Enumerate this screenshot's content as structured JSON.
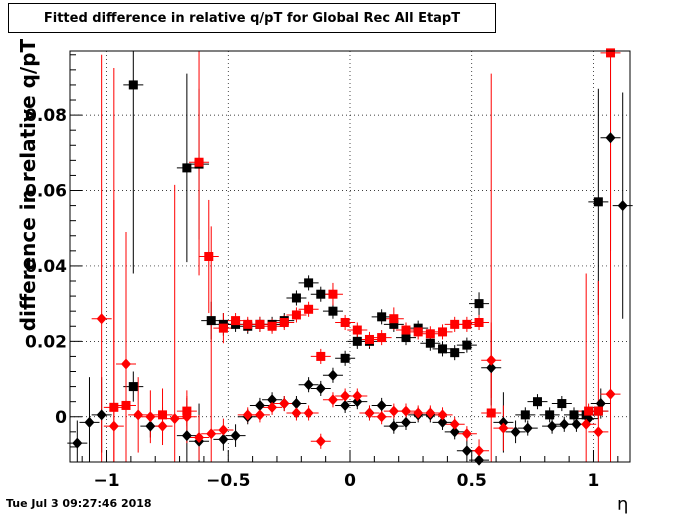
{
  "title": "Fitted difference in relative q/pT for Global Rec All EtapT",
  "timestamp": "Tue Jul  3 09:27:46 2018",
  "chart_data": {
    "type": "scatter",
    "title": "Fitted difference in relative q/pT for Global Rec All EtapT",
    "xlabel": "η",
    "ylabel": "difference in relative q/pT",
    "xlim": [
      -1.15,
      1.15
    ],
    "ylim": [
      -0.012,
      0.097
    ],
    "grid": true,
    "legend": "none",
    "x_ticks": [
      -1,
      -0.5,
      0,
      0.5,
      1
    ],
    "x_tick_labels": [
      "−1",
      "−0.5",
      "0",
      "0.5",
      "1"
    ],
    "y_ticks": [
      0,
      0.02,
      0.04,
      0.06,
      0.08
    ],
    "y_tick_labels": [
      "0",
      "0.02",
      "0.04",
      "0.06",
      "0.08"
    ],
    "series": [
      {
        "color": "#000000",
        "marker": "square",
        "points": [
          {
            "x": -0.89,
            "y": 0.088,
            "err": 0.05
          },
          {
            "x": -0.89,
            "y": 0.008,
            "err": 0.004
          },
          {
            "x": -0.67,
            "y": 0.066,
            "err": 0.025
          },
          {
            "x": -0.62,
            "y": 0.067,
            "err": 0.02
          },
          {
            "x": -0.57,
            "y": 0.0255,
            "err": 0.005
          },
          {
            "x": -0.52,
            "y": 0.0245,
            "err": 0.003
          },
          {
            "x": -0.47,
            "y": 0.0245,
            "err": 0.002
          },
          {
            "x": -0.42,
            "y": 0.024,
            "err": 0.002
          },
          {
            "x": -0.37,
            "y": 0.0245,
            "err": 0.002
          },
          {
            "x": -0.32,
            "y": 0.0245,
            "err": 0.002
          },
          {
            "x": -0.27,
            "y": 0.0255,
            "err": 0.002
          },
          {
            "x": -0.22,
            "y": 0.0315,
            "err": 0.002
          },
          {
            "x": -0.17,
            "y": 0.0355,
            "err": 0.002
          },
          {
            "x": -0.12,
            "y": 0.0325,
            "err": 0.002
          },
          {
            "x": -0.07,
            "y": 0.028,
            "err": 0.002
          },
          {
            "x": -0.02,
            "y": 0.0155,
            "err": 0.002
          },
          {
            "x": 0.03,
            "y": 0.02,
            "err": 0.002
          },
          {
            "x": 0.08,
            "y": 0.02,
            "err": 0.002
          },
          {
            "x": 0.13,
            "y": 0.0265,
            "err": 0.002
          },
          {
            "x": 0.18,
            "y": 0.0245,
            "err": 0.002
          },
          {
            "x": 0.23,
            "y": 0.021,
            "err": 0.002
          },
          {
            "x": 0.28,
            "y": 0.0235,
            "err": 0.002
          },
          {
            "x": 0.33,
            "y": 0.0195,
            "err": 0.002
          },
          {
            "x": 0.38,
            "y": 0.018,
            "err": 0.002
          },
          {
            "x": 0.43,
            "y": 0.017,
            "err": 0.002
          },
          {
            "x": 0.48,
            "y": 0.019,
            "err": 0.002
          },
          {
            "x": 0.53,
            "y": 0.03,
            "err": 0.003
          },
          {
            "x": 0.72,
            "y": 0.0005,
            "err": 0.002
          },
          {
            "x": 0.77,
            "y": 0.004,
            "err": 0.002
          },
          {
            "x": 0.82,
            "y": 0.0005,
            "err": 0.002
          },
          {
            "x": 0.87,
            "y": 0.0035,
            "err": 0.002
          },
          {
            "x": 0.92,
            "y": 0.0005,
            "err": 0.002
          },
          {
            "x": 0.97,
            "y": 0.0005,
            "err": 0.002
          },
          {
            "x": 1.02,
            "y": 0.0015,
            "err": 0.002
          },
          {
            "x": 1.02,
            "y": 0.057,
            "err": 0.03
          }
        ]
      },
      {
        "color": "#000000",
        "marker": "diamond",
        "points": [
          {
            "x": -1.12,
            "y": -0.007,
            "err": 0.006
          },
          {
            "x": -1.07,
            "y": -0.0015,
            "err": 0.012
          },
          {
            "x": -1.02,
            "y": 0.0005,
            "err": 0.01
          },
          {
            "x": -0.82,
            "y": -0.0025,
            "err": 0.003
          },
          {
            "x": -0.67,
            "y": -0.005,
            "err": 0.01
          },
          {
            "x": -0.62,
            "y": -0.0065,
            "err": 0.01
          },
          {
            "x": -0.52,
            "y": -0.006,
            "err": 0.003
          },
          {
            "x": -0.47,
            "y": -0.005,
            "err": 0.003
          },
          {
            "x": -0.42,
            "y": 0.0,
            "err": 0.002
          },
          {
            "x": -0.37,
            "y": 0.003,
            "err": 0.002
          },
          {
            "x": -0.32,
            "y": 0.0045,
            "err": 0.002
          },
          {
            "x": -0.27,
            "y": 0.0035,
            "err": 0.002
          },
          {
            "x": -0.22,
            "y": 0.0035,
            "err": 0.002
          },
          {
            "x": -0.17,
            "y": 0.0085,
            "err": 0.002
          },
          {
            "x": -0.12,
            "y": 0.0075,
            "err": 0.002
          },
          {
            "x": -0.07,
            "y": 0.011,
            "err": 0.002
          },
          {
            "x": -0.02,
            "y": 0.003,
            "err": 0.002
          },
          {
            "x": 0.03,
            "y": 0.004,
            "err": 0.002
          },
          {
            "x": 0.08,
            "y": 0.001,
            "err": 0.002
          },
          {
            "x": 0.13,
            "y": 0.003,
            "err": 0.002
          },
          {
            "x": 0.18,
            "y": -0.0025,
            "err": 0.002
          },
          {
            "x": 0.23,
            "y": -0.0015,
            "err": 0.002
          },
          {
            "x": 0.28,
            "y": 0.0005,
            "err": 0.002
          },
          {
            "x": 0.33,
            "y": 0.0005,
            "err": 0.002
          },
          {
            "x": 0.38,
            "y": -0.0015,
            "err": 0.002
          },
          {
            "x": 0.43,
            "y": -0.004,
            "err": 0.002
          },
          {
            "x": 0.48,
            "y": -0.009,
            "err": 0.003
          },
          {
            "x": 0.53,
            "y": -0.0115,
            "err": 0.003
          },
          {
            "x": 0.58,
            "y": 0.013,
            "err": 0.01
          },
          {
            "x": 0.63,
            "y": -0.0015,
            "err": 0.008
          },
          {
            "x": 0.68,
            "y": -0.004,
            "err": 0.003
          },
          {
            "x": 0.73,
            "y": -0.003,
            "err": 0.002
          },
          {
            "x": 0.83,
            "y": -0.0025,
            "err": 0.002
          },
          {
            "x": 0.88,
            "y": -0.002,
            "err": 0.002
          },
          {
            "x": 0.93,
            "y": -0.002,
            "err": 0.002
          },
          {
            "x": 0.98,
            "y": -0.0005,
            "err": 0.002
          },
          {
            "x": 1.03,
            "y": 0.0035,
            "err": 0.004
          },
          {
            "x": 1.07,
            "y": 0.074,
            "err": 0.03
          },
          {
            "x": 1.12,
            "y": 0.056,
            "err": 0.03
          }
        ]
      },
      {
        "color": "#ff0000",
        "marker": "square",
        "points": [
          {
            "x": -0.97,
            "y": 0.0025,
            "err": 0.09
          },
          {
            "x": -0.92,
            "y": 0.003,
            "err": 0.015
          },
          {
            "x": -0.77,
            "y": 0.0005,
            "err": 0.007
          },
          {
            "x": -0.67,
            "y": 0.0015,
            "err": 0.004
          },
          {
            "x": -0.62,
            "y": 0.0675,
            "err": 0.03
          },
          {
            "x": -0.58,
            "y": 0.0425,
            "err": 0.015
          },
          {
            "x": -0.52,
            "y": 0.0235,
            "err": 0.004
          },
          {
            "x": -0.47,
            "y": 0.0255,
            "err": 0.002
          },
          {
            "x": -0.42,
            "y": 0.0245,
            "err": 0.002
          },
          {
            "x": -0.37,
            "y": 0.0245,
            "err": 0.002
          },
          {
            "x": -0.32,
            "y": 0.024,
            "err": 0.002
          },
          {
            "x": -0.27,
            "y": 0.025,
            "err": 0.002
          },
          {
            "x": -0.22,
            "y": 0.027,
            "err": 0.002
          },
          {
            "x": -0.17,
            "y": 0.0285,
            "err": 0.002
          },
          {
            "x": -0.12,
            "y": 0.016,
            "err": 0.002
          },
          {
            "x": -0.07,
            "y": 0.0325,
            "err": 0.003
          },
          {
            "x": -0.02,
            "y": 0.025,
            "err": 0.002
          },
          {
            "x": 0.03,
            "y": 0.023,
            "err": 0.002
          },
          {
            "x": 0.08,
            "y": 0.0205,
            "err": 0.002
          },
          {
            "x": 0.13,
            "y": 0.021,
            "err": 0.002
          },
          {
            "x": 0.18,
            "y": 0.026,
            "err": 0.003
          },
          {
            "x": 0.23,
            "y": 0.023,
            "err": 0.002
          },
          {
            "x": 0.28,
            "y": 0.0225,
            "err": 0.002
          },
          {
            "x": 0.33,
            "y": 0.022,
            "err": 0.002
          },
          {
            "x": 0.38,
            "y": 0.0225,
            "err": 0.002
          },
          {
            "x": 0.43,
            "y": 0.0245,
            "err": 0.002
          },
          {
            "x": 0.48,
            "y": 0.0245,
            "err": 0.002
          },
          {
            "x": 0.53,
            "y": 0.025,
            "err": 0.002
          },
          {
            "x": 0.58,
            "y": 0.001,
            "err": 0.09
          },
          {
            "x": 0.98,
            "y": 0.0015,
            "err": 0.002
          },
          {
            "x": 1.02,
            "y": 0.0015,
            "err": 0.002
          },
          {
            "x": 1.07,
            "y": 0.0965,
            "err": 0.05
          }
        ]
      },
      {
        "color": "#ff0000",
        "marker": "diamond",
        "points": [
          {
            "x": -1.02,
            "y": 0.026,
            "err": 0.07
          },
          {
            "x": -0.97,
            "y": -0.0025,
            "err": 0.06
          },
          {
            "x": -0.92,
            "y": 0.014,
            "err": 0.035
          },
          {
            "x": -0.87,
            "y": 0.0005,
            "err": 0.01
          },
          {
            "x": -0.82,
            "y": 0.0,
            "err": 0.007
          },
          {
            "x": -0.77,
            "y": -0.0025,
            "err": 0.005
          },
          {
            "x": -0.72,
            "y": -0.0005,
            "err": 0.062
          },
          {
            "x": -0.67,
            "y": 0.0,
            "err": 0.007
          },
          {
            "x": -0.62,
            "y": -0.0055,
            "err": 0.006
          },
          {
            "x": -0.57,
            "y": -0.0045,
            "err": 0.055
          },
          {
            "x": -0.52,
            "y": -0.0035,
            "err": 0.003
          },
          {
            "x": -0.42,
            "y": 0.0005,
            "err": 0.002
          },
          {
            "x": -0.37,
            "y": 0.0005,
            "err": 0.002
          },
          {
            "x": -0.32,
            "y": 0.0025,
            "err": 0.002
          },
          {
            "x": -0.27,
            "y": 0.0035,
            "err": 0.002
          },
          {
            "x": -0.22,
            "y": 0.001,
            "err": 0.002
          },
          {
            "x": -0.17,
            "y": 0.001,
            "err": 0.002
          },
          {
            "x": -0.12,
            "y": -0.0065,
            "err": 0.002
          },
          {
            "x": -0.07,
            "y": 0.0045,
            "err": 0.002
          },
          {
            "x": -0.02,
            "y": 0.0055,
            "err": 0.002
          },
          {
            "x": 0.03,
            "y": 0.0055,
            "err": 0.002
          },
          {
            "x": 0.08,
            "y": 0.001,
            "err": 0.002
          },
          {
            "x": 0.13,
            "y": 0.0,
            "err": 0.002
          },
          {
            "x": 0.18,
            "y": 0.0015,
            "err": 0.002
          },
          {
            "x": 0.23,
            "y": 0.0015,
            "err": 0.002
          },
          {
            "x": 0.28,
            "y": 0.001,
            "err": 0.002
          },
          {
            "x": 0.33,
            "y": 0.001,
            "err": 0.002
          },
          {
            "x": 0.38,
            "y": 0.0005,
            "err": 0.002
          },
          {
            "x": 0.43,
            "y": -0.002,
            "err": 0.002
          },
          {
            "x": 0.48,
            "y": -0.0045,
            "err": 0.002
          },
          {
            "x": 0.53,
            "y": -0.009,
            "err": 0.003
          },
          {
            "x": 0.58,
            "y": 0.015,
            "err": 0.01
          },
          {
            "x": 0.63,
            "y": -0.003,
            "err": 0.006
          },
          {
            "x": 0.97,
            "y": -0.002,
            "err": 0.04
          },
          {
            "x": 1.02,
            "y": -0.004,
            "err": 0.04
          },
          {
            "x": 1.07,
            "y": 0.006,
            "err": 0.07
          }
        ]
      }
    ]
  }
}
